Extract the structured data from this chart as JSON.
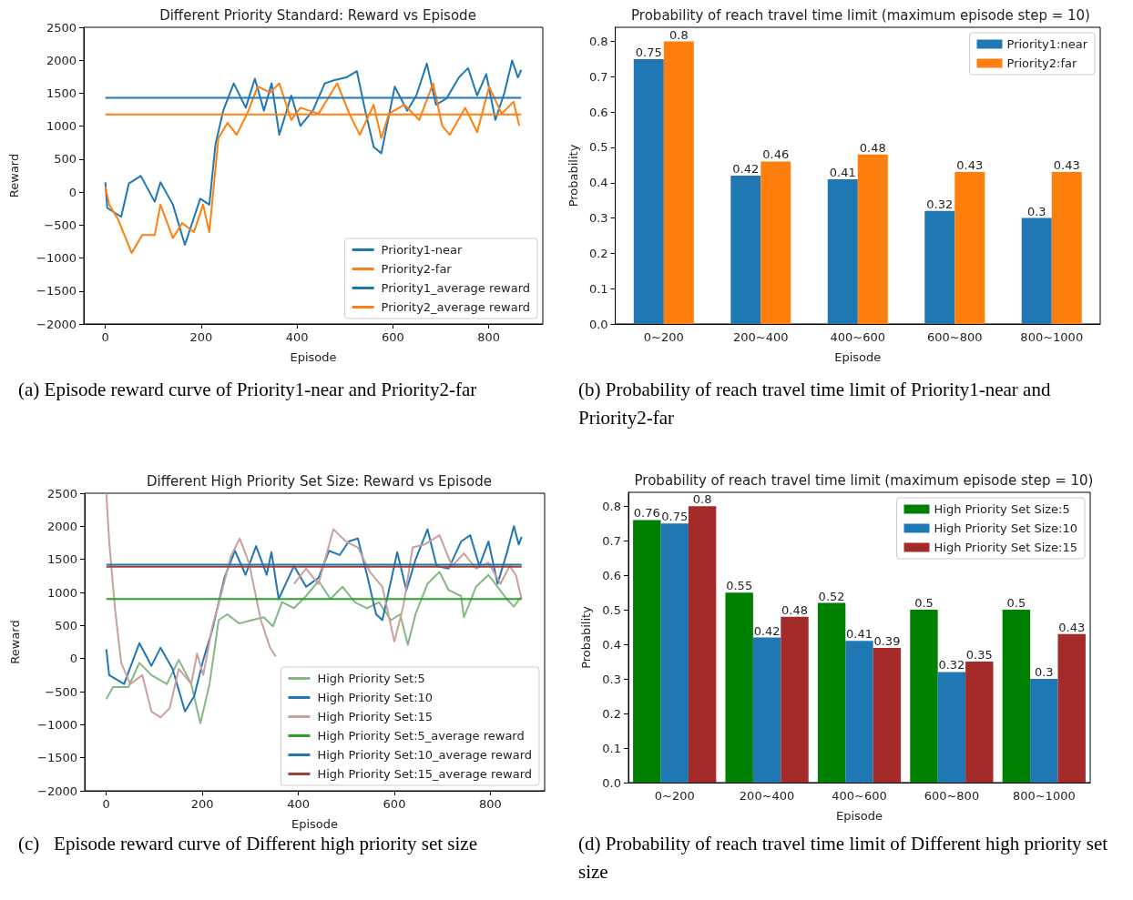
{
  "chart_data": [
    {
      "type": "line",
      "title": "Different Priority Standard: Reward vs Episode",
      "xlabel": "Episode",
      "ylabel": "Reward",
      "xlim": [
        -45,
        913
      ],
      "xticks": [
        0,
        200,
        400,
        600,
        800
      ],
      "ylim": [
        -2000,
        2500
      ],
      "yticks": [
        {
          "value": -2000,
          "label": "−2000"
        },
        {
          "value": -1500,
          "label": "−1500"
        },
        {
          "value": -1000,
          "label": "−1000"
        },
        {
          "value": -500,
          "label": "−500"
        },
        0,
        500,
        1000,
        1500,
        2000,
        2500
      ],
      "legend": "bottom right",
      "annotations": [
        "(a) Episode reward curve of Priority1-near and Priority2-far"
      ],
      "series": [
        {
          "name": "Priority1-near",
          "color": "#1f77b4",
          "x": [
            0,
            4,
            33,
            49,
            74,
            103,
            115,
            141,
            166,
            198,
            217,
            230,
            246,
            268,
            293,
            312,
            331,
            347,
            363,
            388,
            407,
            433,
            458,
            477,
            503,
            525,
            541,
            560,
            576,
            604,
            630,
            649,
            671,
            690,
            712,
            738,
            757,
            776,
            795,
            814,
            833,
            849,
            861,
            868
          ],
          "values": [
            150,
            -240,
            -375,
            130,
            245,
            -145,
            150,
            -190,
            -800,
            -100,
            -190,
            730,
            1235,
            1650,
            1280,
            1720,
            1235,
            1650,
            870,
            1465,
            1005,
            1235,
            1650,
            1695,
            1740,
            1835,
            1280,
            685,
            590,
            1600,
            1235,
            1465,
            1950,
            1325,
            1420,
            1740,
            1880,
            1465,
            1790,
            1095,
            1510,
            1995,
            1740,
            1855
          ]
        },
        {
          "name": "Priority2-far",
          "color": "#ff7f0e",
          "x": [
            0,
            8,
            27,
            55,
            77,
            103,
            115,
            141,
            160,
            185,
            204,
            217,
            236,
            255,
            274,
            296,
            318,
            344,
            363,
            388,
            407,
            445,
            484,
            509,
            531,
            560,
            576,
            592,
            624,
            655,
            684,
            703,
            719,
            751,
            776,
            801,
            827,
            852,
            864
          ],
          "values": [
            80,
            -190,
            -420,
            -925,
            -650,
            -650,
            -190,
            -700,
            -470,
            -605,
            -190,
            -605,
            820,
            1050,
            870,
            1190,
            1600,
            1510,
            1650,
            1095,
            1280,
            1190,
            1650,
            1190,
            870,
            1325,
            820,
            1190,
            1325,
            1095,
            1650,
            1005,
            870,
            1280,
            910,
            1600,
            1190,
            1370,
            1005
          ]
        },
        {
          "name": "Priority1_average reward",
          "color": "#1f77b4",
          "x": [
            0,
            868
          ],
          "values": [
            1430,
            1430
          ]
        },
        {
          "name": "Priority2_average reward",
          "color": "#ff7f0e",
          "x": [
            0,
            868
          ],
          "values": [
            1180,
            1180
          ]
        }
      ]
    },
    {
      "type": "bar",
      "title": "Probability of reach travel time limit (maximum episode step = 10)",
      "xlabel": "Episode",
      "ylabel": "Probability",
      "categories": [
        "0~200",
        "200~400",
        "400~600",
        "600~800",
        "800~1000"
      ],
      "ylim": [
        0,
        0.84
      ],
      "yticks": [
        {
          "value": 0,
          "label": "0.0"
        },
        0.1,
        0.2,
        0.3,
        0.4,
        0.5,
        0.6,
        0.7,
        0.8
      ],
      "legend": "top right",
      "data_labels": true,
      "annotations": [
        "(b) Probability of reach travel time limit of Priority1-near and Priority2-far"
      ],
      "series": [
        {
          "name": "Priority1:near",
          "color": "#1f77b4",
          "values": [
            0.75,
            0.42,
            0.41,
            0.32,
            0.3
          ]
        },
        {
          "name": "Priority2:far",
          "color": "#ff7f0e",
          "values": [
            0.8,
            0.46,
            0.48,
            0.43,
            0.43
          ]
        }
      ]
    },
    {
      "type": "line",
      "title": "Different High Priority Set Size: Reward vs Episode",
      "xlabel": "Episode",
      "ylabel": "Reward",
      "xlim": [
        -45,
        913
      ],
      "xticks": [
        0,
        200,
        400,
        600,
        800
      ],
      "ylim": [
        -2000,
        2500
      ],
      "yticks": [
        {
          "value": -2000,
          "label": "−2000"
        },
        {
          "value": -1500,
          "label": "−1500"
        },
        {
          "value": -1000,
          "label": "−1000"
        },
        {
          "value": -500,
          "label": "−500"
        },
        0,
        500,
        1000,
        1500,
        2000,
        2500
      ],
      "legend": "bottom right",
      "annotations": [
        "(c)   Episode reward curve of Different high priority set size"
      ],
      "series": [
        {
          "name": "High Priority Set:5",
          "color": "#82b882",
          "x": [
            0,
            14,
            46,
            69,
            94,
            126,
            151,
            177,
            196,
            215,
            234,
            252,
            277,
            303,
            328,
            347,
            366,
            391,
            416,
            442,
            467,
            492,
            518,
            543,
            568,
            593,
            612,
            628,
            644,
            669,
            694,
            713,
            739,
            745,
            770,
            796,
            815,
            834,
            849,
            865
          ],
          "values": [
            -615,
            -430,
            -430,
            -65,
            -250,
            -385,
            -20,
            -385,
            -980,
            -385,
            580,
            670,
            530,
            580,
            625,
            487,
            853,
            762,
            945,
            1175,
            900,
            1085,
            850,
            760,
            850,
            580,
            670,
            210,
            670,
            1130,
            1310,
            1035,
            945,
            625,
            1085,
            1265,
            1085,
            900,
            785,
            945
          ]
        },
        {
          "name": "High Priority Set:10",
          "color": "#1f77b4",
          "x": [
            0,
            6,
            37,
            69,
            94,
            113,
            138,
            164,
            183,
            202,
            221,
            246,
            268,
            290,
            312,
            334,
            344,
            359,
            391,
            416,
            442,
            464,
            486,
            505,
            524,
            543,
            562,
            575,
            606,
            625,
            644,
            669,
            688,
            713,
            739,
            758,
            777,
            796,
            815,
            834,
            849,
            859,
            865
          ],
          "values": [
            140,
            -250,
            -385,
            234,
            -110,
            165,
            -155,
            -800,
            -570,
            -20,
            440,
            1220,
            1630,
            1265,
            1700,
            1265,
            1610,
            900,
            1400,
            1085,
            1220,
            1630,
            1565,
            1770,
            1815,
            1265,
            670,
            580,
            1610,
            1035,
            1495,
            1955,
            1400,
            1360,
            1770,
            1865,
            1400,
            1770,
            1130,
            1590,
            2000,
            1725,
            1840
          ]
        },
        {
          "name": "High Priority Set:15",
          "color": "#c9a09c",
          "x": [
            0,
            6,
            18,
            31,
            50,
            75,
            94,
            113,
            132,
            151,
            177,
            189,
            202,
            221,
            240,
            259,
            278,
            297,
            322,
            341,
            353,
            372,
            391,
            416,
            442,
            473,
            499,
            524,
            549,
            575,
            600,
            619,
            638,
            663,
            694,
            720,
            745,
            770,
            796,
            821,
            840,
            853,
            865
          ],
          "values": [
            2500,
            1770,
            760,
            -65,
            -385,
            -250,
            -800,
            -890,
            -750,
            -155,
            -385,
            75,
            -250,
            487,
            990,
            1540,
            1815,
            1450,
            580,
            165,
            30,
            null,
            1130,
            1360,
            1130,
            1955,
            1770,
            1680,
            1310,
            1085,
            257,
            808,
            1680,
            1725,
            1865,
            1400,
            1590,
            1360,
            1450,
            1130,
            1400,
            1265,
            900
          ]
        },
        {
          "name": "High Priority Set:5_average reward",
          "color": "#2ca02c",
          "x": [
            0,
            865
          ],
          "values": [
            900,
            900
          ]
        },
        {
          "name": "High Priority Set:10_average reward",
          "color": "#1f77b4",
          "x": [
            0,
            865
          ],
          "values": [
            1420,
            1420
          ]
        },
        {
          "name": "High Priority Set:15_average reward",
          "color": "#a0403c",
          "x": [
            0,
            865
          ],
          "values": [
            1390,
            1390
          ]
        }
      ]
    },
    {
      "type": "bar",
      "title": "Probability of reach travel time limit (maximum episode step = 10)",
      "xlabel": "Episode",
      "ylabel": "Probability",
      "categories": [
        "0~200",
        "200~400",
        "400~600",
        "600~800",
        "800~1000"
      ],
      "ylim": [
        0,
        0.84
      ],
      "yticks": [
        {
          "value": 0,
          "label": "0.0"
        },
        0.1,
        0.2,
        0.3,
        0.4,
        0.5,
        0.6,
        0.7,
        0.8
      ],
      "legend": "top right",
      "data_labels": true,
      "annotations": [
        "(d) Probability of reach travel time limit of Different high priority set size"
      ],
      "series": [
        {
          "name": "High Priority Set Size:5",
          "color": "#008000",
          "values": [
            0.76,
            0.55,
            0.52,
            0.5,
            0.5
          ]
        },
        {
          "name": "High Priority Set Size:10",
          "color": "#1f77b4",
          "values": [
            0.75,
            0.42,
            0.41,
            0.32,
            0.3
          ]
        },
        {
          "name": "High Priority Set Size:15",
          "color": "#a52a2a",
          "values": [
            0.8,
            0.48,
            0.39,
            0.35,
            0.43
          ]
        }
      ]
    }
  ]
}
